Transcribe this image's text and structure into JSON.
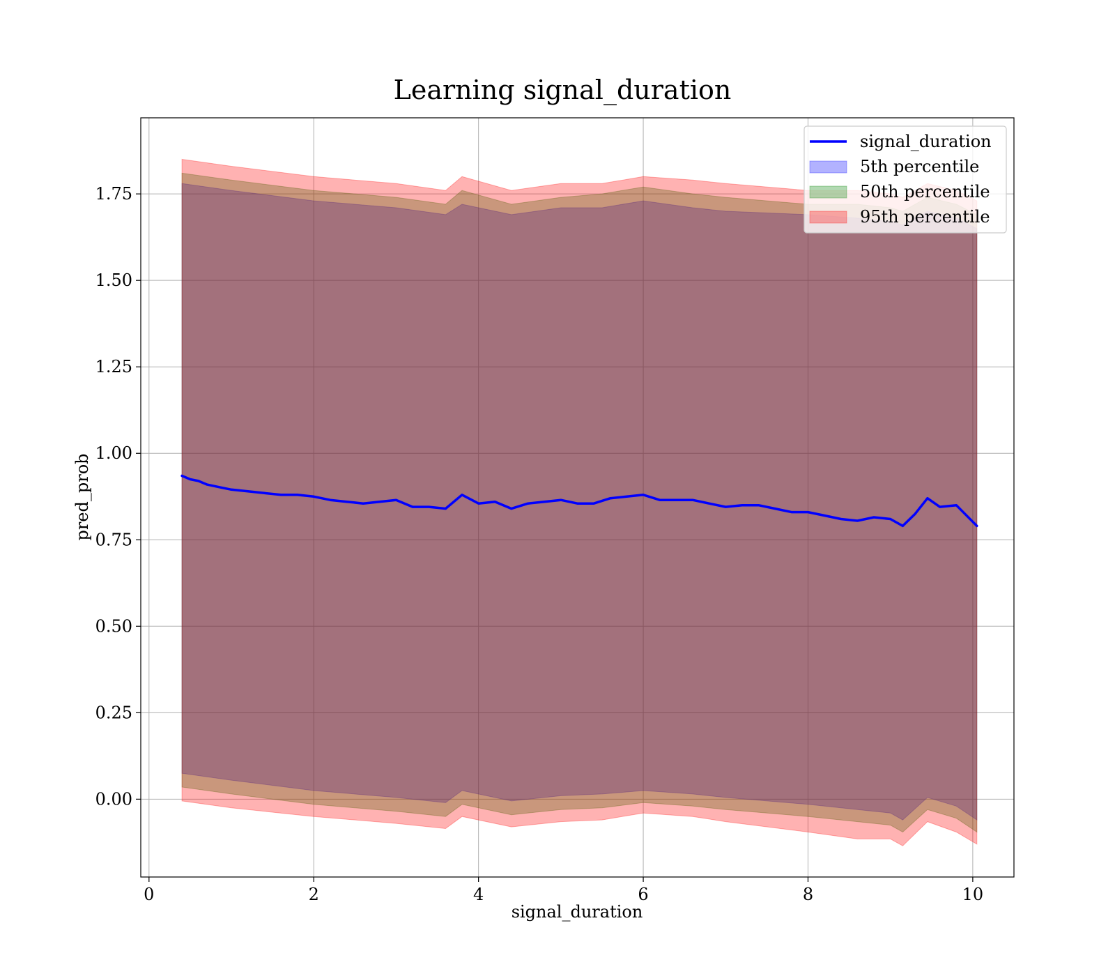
{
  "chart_data": {
    "type": "line",
    "title": "Learning signal_duration",
    "xlabel": "signal_duration",
    "ylabel": "pred_prob",
    "xlim": [
      -0.1,
      10.5
    ],
    "ylim": [
      -0.225,
      1.97
    ],
    "x_ticks": [
      0,
      2,
      4,
      6,
      8,
      10
    ],
    "x_tick_labels": [
      "0",
      "2",
      "4",
      "6",
      "8",
      "10"
    ],
    "y_ticks": [
      0.0,
      0.25,
      0.5,
      0.75,
      1.0,
      1.25,
      1.5,
      1.75
    ],
    "y_tick_labels": [
      "0.00",
      "0.25",
      "0.50",
      "0.75",
      "1.00",
      "1.25",
      "1.50",
      "1.75"
    ],
    "grid": true,
    "legend_position": "top-right",
    "colors": {
      "line": "#0000ff",
      "p5": "#0000ff",
      "p50": "#008000",
      "p95": "#ff0000",
      "grid": "#b0b0b0"
    },
    "series": [
      {
        "name": "signal_duration",
        "kind": "line",
        "x": [
          0.4,
          0.5,
          0.6,
          0.7,
          0.8,
          0.9,
          1.0,
          1.2,
          1.4,
          1.6,
          1.8,
          2.0,
          2.2,
          2.4,
          2.6,
          2.8,
          3.0,
          3.2,
          3.4,
          3.6,
          3.8,
          4.0,
          4.2,
          4.4,
          4.6,
          4.8,
          5.0,
          5.2,
          5.4,
          5.6,
          5.8,
          6.0,
          6.2,
          6.4,
          6.6,
          6.8,
          7.0,
          7.2,
          7.4,
          7.6,
          7.8,
          8.0,
          8.2,
          8.4,
          8.6,
          8.8,
          9.0,
          9.15,
          9.3,
          9.45,
          9.6,
          9.8,
          10.05
        ],
        "y": [
          0.935,
          0.925,
          0.92,
          0.91,
          0.905,
          0.9,
          0.895,
          0.89,
          0.885,
          0.88,
          0.88,
          0.875,
          0.865,
          0.86,
          0.855,
          0.86,
          0.865,
          0.845,
          0.845,
          0.84,
          0.88,
          0.855,
          0.86,
          0.84,
          0.855,
          0.86,
          0.865,
          0.855,
          0.855,
          0.87,
          0.875,
          0.88,
          0.865,
          0.865,
          0.865,
          0.855,
          0.845,
          0.85,
          0.85,
          0.84,
          0.83,
          0.83,
          0.82,
          0.81,
          0.805,
          0.815,
          0.81,
          0.79,
          0.825,
          0.87,
          0.845,
          0.85,
          0.79
        ]
      },
      {
        "name": "5th percentile",
        "kind": "band",
        "x": [
          0.4,
          1.0,
          2.0,
          3.0,
          3.6,
          3.8,
          4.4,
          5.0,
          5.5,
          6.0,
          6.6,
          7.0,
          8.0,
          8.6,
          9.0,
          9.15,
          9.45,
          9.8,
          10.05
        ],
        "lower": [
          0.075,
          0.055,
          0.025,
          0.005,
          -0.01,
          0.025,
          -0.005,
          0.01,
          0.015,
          0.025,
          0.015,
          0.005,
          -0.015,
          -0.03,
          -0.04,
          -0.06,
          0.005,
          -0.02,
          -0.06
        ],
        "upper": [
          1.78,
          1.76,
          1.73,
          1.71,
          1.69,
          1.72,
          1.69,
          1.71,
          1.71,
          1.73,
          1.71,
          1.7,
          1.69,
          1.68,
          1.67,
          1.66,
          1.7,
          1.68,
          1.65
        ]
      },
      {
        "name": "50th percentile",
        "kind": "band",
        "x": [
          0.4,
          1.0,
          2.0,
          3.0,
          3.6,
          3.8,
          4.4,
          5.0,
          5.5,
          6.0,
          6.6,
          7.0,
          8.0,
          8.6,
          9.0,
          9.15,
          9.45,
          9.8,
          10.05
        ],
        "lower": [
          0.035,
          0.015,
          -0.015,
          -0.035,
          -0.05,
          -0.015,
          -0.045,
          -0.03,
          -0.025,
          -0.01,
          -0.02,
          -0.03,
          -0.05,
          -0.065,
          -0.075,
          -0.095,
          -0.03,
          -0.055,
          -0.095
        ],
        "upper": [
          1.81,
          1.79,
          1.76,
          1.74,
          1.72,
          1.76,
          1.72,
          1.74,
          1.75,
          1.77,
          1.75,
          1.74,
          1.72,
          1.72,
          1.71,
          1.7,
          1.74,
          1.72,
          1.69
        ]
      },
      {
        "name": "95th percentile",
        "kind": "band",
        "x": [
          0.4,
          1.0,
          2.0,
          3.0,
          3.6,
          3.8,
          4.4,
          5.0,
          5.5,
          6.0,
          6.6,
          7.0,
          8.0,
          8.6,
          9.0,
          9.15,
          9.45,
          9.8,
          10.05
        ],
        "lower": [
          -0.005,
          -0.025,
          -0.05,
          -0.07,
          -0.085,
          -0.05,
          -0.08,
          -0.065,
          -0.06,
          -0.04,
          -0.05,
          -0.065,
          -0.095,
          -0.115,
          -0.115,
          -0.135,
          -0.065,
          -0.095,
          -0.13
        ],
        "upper": [
          1.85,
          1.83,
          1.8,
          1.78,
          1.76,
          1.8,
          1.76,
          1.78,
          1.78,
          1.8,
          1.79,
          1.78,
          1.76,
          1.76,
          1.75,
          1.74,
          1.78,
          1.76,
          1.73
        ]
      }
    ]
  }
}
